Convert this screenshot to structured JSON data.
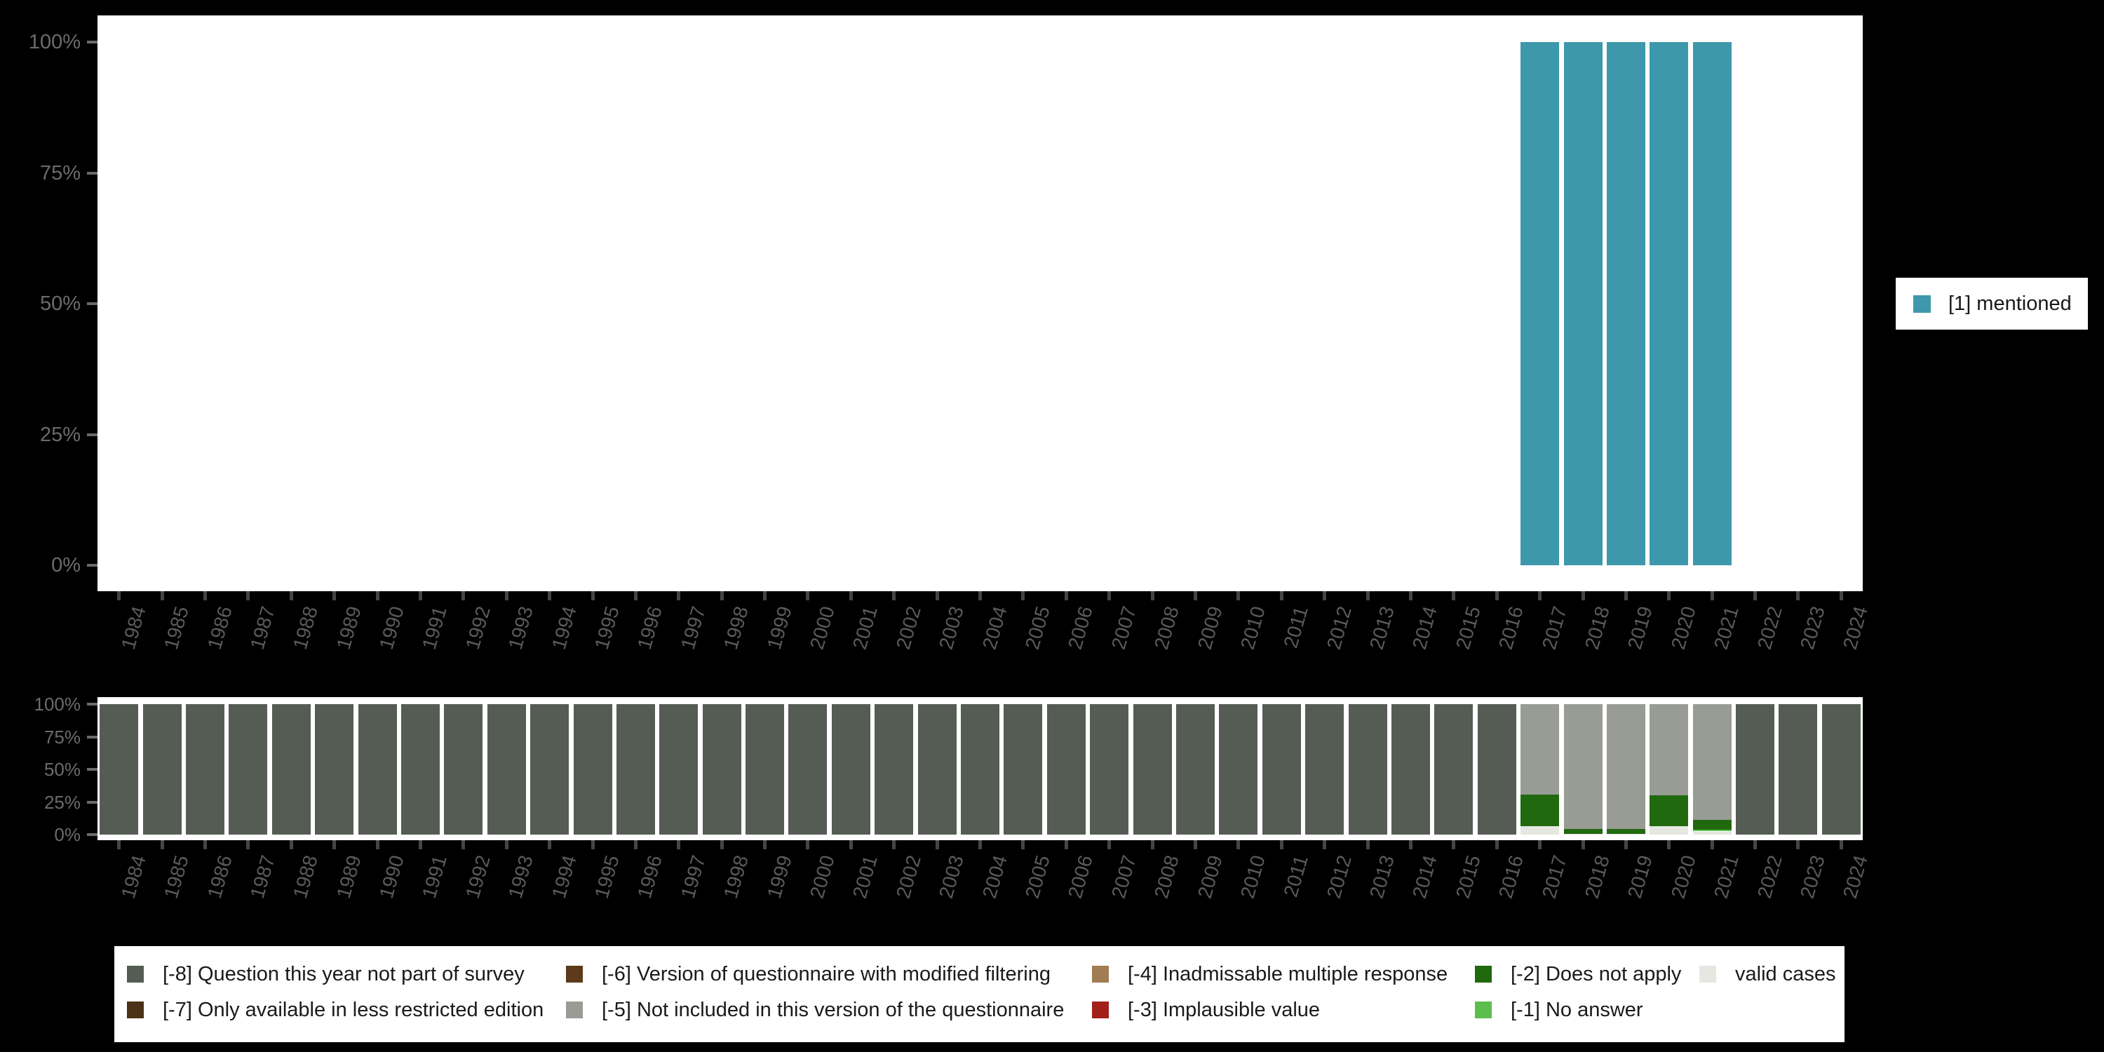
{
  "palette": {
    "mentioned": "#3D98AC",
    "-8": "#555C54",
    "-7": "#4A3117",
    "-6": "#5C3A1A",
    "-5": "#989C95",
    "-4": "#A27C52",
    "-3": "#A3201A",
    "-2": "#20690E",
    "-1": "#5CBF4D",
    "valid": "#E4E8E1",
    "axis_y_label_color": "#6B6B6B",
    "axis_x_label_color": "#5A5A5A",
    "legend_text_color": "#1A1A1A",
    "background": "#000000",
    "plot_background": "#FFFFFF"
  },
  "chart_data": [
    {
      "type": "bar",
      "title": "",
      "xlabel": "",
      "ylabel": "",
      "ylim": [
        0,
        100
      ],
      "grid": false,
      "legend_position": "right",
      "categories": [
        "1984",
        "1985",
        "1986",
        "1987",
        "1988",
        "1989",
        "1990",
        "1991",
        "1992",
        "1993",
        "1994",
        "1995",
        "1996",
        "1997",
        "1998",
        "1999",
        "2000",
        "2001",
        "2002",
        "2003",
        "2004",
        "2005",
        "2006",
        "2007",
        "2008",
        "2009",
        "2010",
        "2011",
        "2012",
        "2013",
        "2014",
        "2015",
        "2016",
        "2017",
        "2018",
        "2019",
        "2020",
        "2021",
        "2022",
        "2023",
        "2024"
      ],
      "y_ticks": [
        {
          "label": "0%",
          "value": 0
        },
        {
          "label": "25%",
          "value": 25
        },
        {
          "label": "50%",
          "value": 50
        },
        {
          "label": "75%",
          "value": 75
        },
        {
          "label": "100%",
          "value": 100
        }
      ],
      "stack_order": [
        "mentioned"
      ],
      "default_stack": {},
      "stacks_by_year": {
        "2017": {
          "mentioned": 100
        },
        "2018": {
          "mentioned": 100
        },
        "2019": {
          "mentioned": 100
        },
        "2020": {
          "mentioned": 100
        },
        "2021": {
          "mentioned": 100
        }
      },
      "legend": [
        {
          "code": "mentioned",
          "label": "[1] mentioned"
        }
      ]
    },
    {
      "type": "stacked-bar",
      "title": "",
      "xlabel": "",
      "ylabel": "",
      "ylim": [
        0,
        100
      ],
      "grid": false,
      "legend_position": "bottom",
      "categories": [
        "1984",
        "1985",
        "1986",
        "1987",
        "1988",
        "1989",
        "1990",
        "1991",
        "1992",
        "1993",
        "1994",
        "1995",
        "1996",
        "1997",
        "1998",
        "1999",
        "2000",
        "2001",
        "2002",
        "2003",
        "2004",
        "2005",
        "2006",
        "2007",
        "2008",
        "2009",
        "2010",
        "2011",
        "2012",
        "2013",
        "2014",
        "2015",
        "2016",
        "2017",
        "2018",
        "2019",
        "2020",
        "2021",
        "2022",
        "2023",
        "2024"
      ],
      "y_ticks": [
        {
          "label": "0%",
          "value": 0
        },
        {
          "label": "25%",
          "value": 25
        },
        {
          "label": "50%",
          "value": 50
        },
        {
          "label": "75%",
          "value": 75
        },
        {
          "label": "100%",
          "value": 100
        }
      ],
      "stack_order": [
        "valid",
        "-1",
        "-2",
        "-3",
        "-4",
        "-5",
        "-6",
        "-7",
        "-8"
      ],
      "default_stack": {
        "-8": 100
      },
      "stacks_by_year": {
        "2017": {
          "valid": 6.5,
          "-2": 24.3,
          "-5": 69.2
        },
        "2018": {
          "valid": 0.3,
          "-2": 3.8,
          "-5": 95.9
        },
        "2019": {
          "valid": 0.4,
          "-2": 3.9,
          "-5": 95.7
        },
        "2020": {
          "valid": 6.6,
          "-2": 23.5,
          "-5": 69.9
        },
        "2021": {
          "valid": 2.4,
          "-1": 1.2,
          "-2": 7.7,
          "-5": 88.7
        }
      }
    }
  ],
  "legend_top": {
    "label": "[1] mentioned",
    "color_key": "mentioned"
  },
  "legend_bottom": {
    "columns": [
      [
        {
          "code": "-8",
          "label": "[-8] Question this year not part of survey"
        },
        {
          "code": "-7",
          "label": "[-7] Only available in less restricted edition"
        }
      ],
      [
        {
          "code": "-6",
          "label": "[-6] Version of questionnaire with modified filtering"
        },
        {
          "code": "-5",
          "label": "[-5] Not included in this version of the questionnaire"
        }
      ],
      [
        {
          "code": "-4",
          "label": "[-4] Inadmissable multiple response"
        },
        {
          "code": "-3",
          "label": "[-3] Implausible value"
        }
      ],
      [
        {
          "code": "-2",
          "label": "[-2] Does not apply"
        },
        {
          "code": "-1",
          "label": "[-1] No answer"
        }
      ],
      [
        {
          "code": "valid",
          "label": "valid cases"
        }
      ]
    ]
  }
}
